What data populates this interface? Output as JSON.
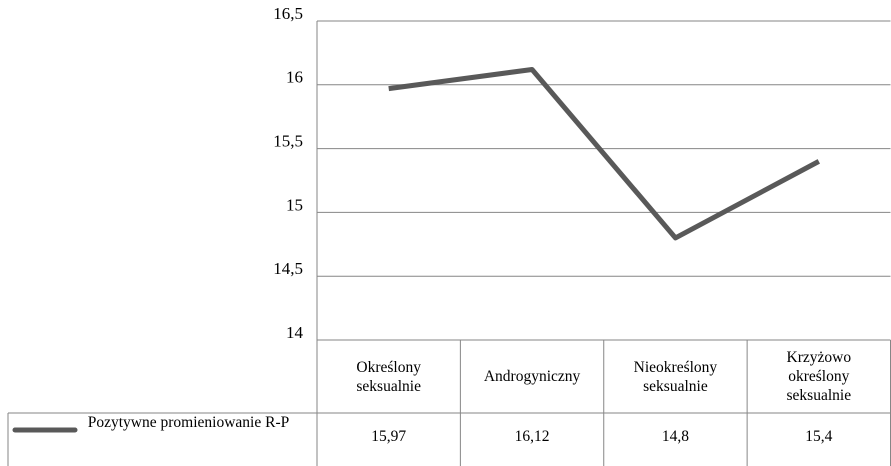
{
  "chart_data": {
    "type": "line",
    "categories": [
      "Określony seksualnie",
      "Androgyniczny",
      "Nieokreślony seksualnie",
      "Krzyżowo określony seksualnie"
    ],
    "series": [
      {
        "name": "Pozytywne promieniowanie R-P",
        "color": "#595959",
        "values": [
          15.97,
          16.12,
          14.8,
          15.4
        ],
        "value_labels": [
          "15,97",
          "16,12",
          "14,8",
          "15,4"
        ]
      }
    ],
    "ylim": [
      14,
      16.5
    ],
    "yticks": [
      14,
      {
        "value": 14.5,
        "label": "14,5"
      },
      15,
      {
        "value": 15.5,
        "label": "15,5"
      },
      16,
      {
        "value": 16.5,
        "label": "16,5"
      }
    ],
    "grid": true
  }
}
